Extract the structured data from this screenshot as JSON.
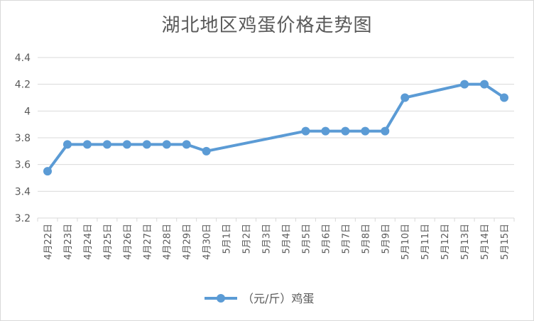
{
  "chart_data": {
    "type": "line",
    "title": "湖北地区鸡蛋价格走势图",
    "xlabel": "",
    "ylabel": "",
    "categories": [
      "4月22日",
      "4月23日",
      "4月24日",
      "4月25日",
      "4月26日",
      "4月27日",
      "4月28日",
      "4月29日",
      "4月30日",
      "5月1日",
      "5月2日",
      "5月3日",
      "5月4日",
      "5月5日",
      "5月6日",
      "5月7日",
      "5月8日",
      "5月9日",
      "5月10日",
      "5月11日",
      "5月12日",
      "5月13日",
      "5月14日",
      "5月15日"
    ],
    "series": [
      {
        "name": "（元/斤）鸡蛋",
        "color": "#5b9bd5",
        "values": [
          3.55,
          3.75,
          3.75,
          3.75,
          3.75,
          3.75,
          3.75,
          3.75,
          3.7,
          null,
          null,
          null,
          null,
          3.85,
          3.85,
          3.85,
          3.85,
          3.85,
          4.1,
          null,
          null,
          4.2,
          4.2,
          4.1
        ]
      }
    ],
    "ylim": [
      3.2,
      4.4
    ],
    "yticks": [
      "3.2",
      "3.4",
      "3.6",
      "3.8",
      "4",
      "4.2",
      "4.4"
    ],
    "grid": true,
    "legend_position": "bottom"
  }
}
